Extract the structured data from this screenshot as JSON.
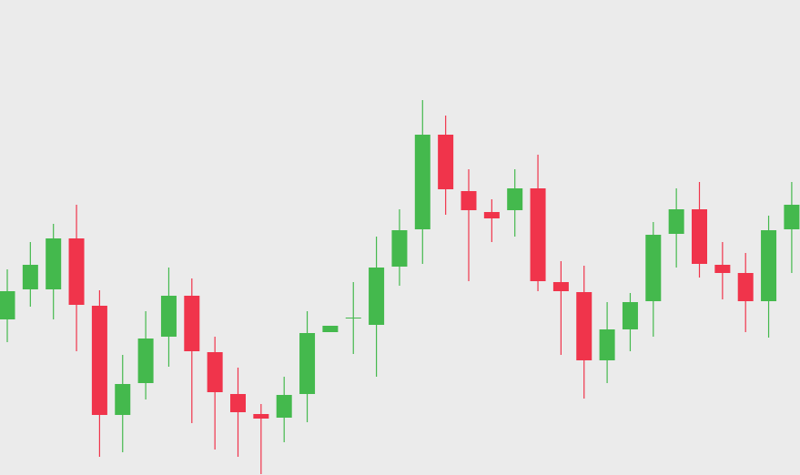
{
  "chart_data": {
    "type": "candlestick",
    "up_color": "#44b94d",
    "down_color": "#f0344b",
    "background": "#ebebeb",
    "ylim": [
      0,
      522
    ],
    "open": [
      171,
      204,
      204,
      260,
      186,
      66,
      101,
      152,
      197,
      135,
      89,
      67,
      63,
      89,
      157,
      172,
      165,
      229,
      270,
      374,
      312,
      289,
      291,
      315,
      212,
      201,
      126,
      160,
      191,
      265,
      292,
      231,
      222,
      191,
      270
    ],
    "high": [
      226,
      256,
      276,
      297,
      203,
      132,
      180,
      228,
      216,
      152,
      118,
      78,
      108,
      180,
      164,
      212,
      262,
      292,
      412,
      395,
      336,
      303,
      336,
      352,
      235,
      230,
      190,
      200,
      278,
      315,
      322,
      256,
      244,
      285,
      322
    ],
    "low": [
      146,
      185,
      171,
      136,
      20,
      25,
      83,
      119,
      57,
      28,
      20,
      1,
      36,
      58,
      157,
      133,
      108,
      208,
      232,
      286,
      213,
      256,
      262,
      202,
      132,
      84,
      101,
      136,
      152,
      228,
      217,
      193,
      157,
      151,
      222
    ],
    "close": [
      202,
      231,
      260,
      187,
      66,
      100,
      150,
      197,
      136,
      91,
      69,
      62,
      88,
      156,
      164,
      173,
      228,
      269,
      374,
      314,
      291,
      282,
      315,
      213,
      202,
      126,
      160,
      190,
      264,
      292,
      232,
      222,
      191,
      269,
      297
    ]
  }
}
